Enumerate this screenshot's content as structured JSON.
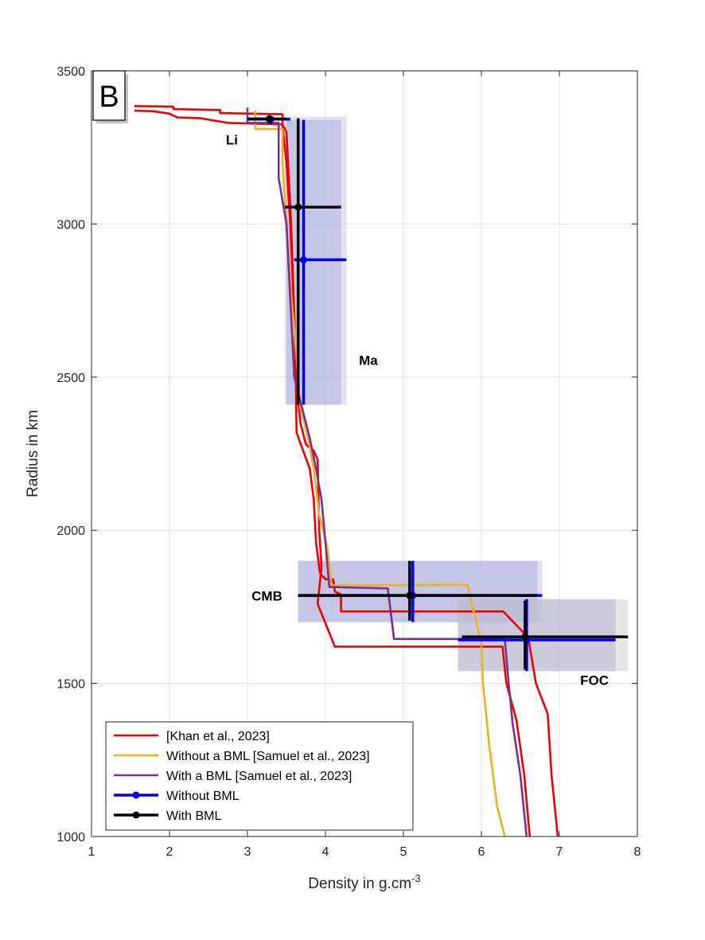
{
  "chart_data": {
    "type": "line",
    "panel_label": "B",
    "xlabel": "Density in g.cm",
    "xlabel_superscript": "-3",
    "ylabel": "Radius in km",
    "xlim": [
      1,
      8
    ],
    "ylim": [
      1000,
      3500
    ],
    "xticks": [
      1,
      2,
      3,
      4,
      5,
      6,
      7,
      8
    ],
    "yticks": [
      1000,
      1500,
      2000,
      2500,
      3000,
      3500
    ],
    "grid": true,
    "legend_position": "bottom-left",
    "colors": {
      "khan": "#ee0000",
      "without_bml_samuel": "#eeb020",
      "with_bml_samuel": "#7d2e8e",
      "without_bml": "#0000ee",
      "with_bml": "#000000",
      "band": "#8c8ccd",
      "band_outer": "#c8c8e6",
      "band_gray": "#d2d2d2"
    },
    "region_labels": [
      {
        "text": "Li",
        "x": 2.8,
        "y": 3260
      },
      {
        "text": "Ma",
        "x": 4.55,
        "y": 2540
      },
      {
        "text": "CMB",
        "x": 3.25,
        "y": 1770
      },
      {
        "text": "FOC",
        "x": 7.45,
        "y": 1495
      }
    ],
    "uncertainty_bands": [
      {
        "x0": 3.5,
        "x1": 4.2,
        "y0": 2410,
        "y1": 3340,
        "fill": "band"
      },
      {
        "x0": 3.48,
        "x1": 4.27,
        "y0": 2410,
        "y1": 3350,
        "fill": "band_outer"
      },
      {
        "x0": 3.65,
        "x1": 6.72,
        "y0": 1700,
        "y1": 1900,
        "fill": "band"
      },
      {
        "x0": 3.65,
        "x1": 6.78,
        "y0": 1700,
        "y1": 1900,
        "fill": "band_outer"
      },
      {
        "x0": 5.7,
        "x1": 7.72,
        "y0": 1540,
        "y1": 1775,
        "fill": "band"
      },
      {
        "x0": 5.7,
        "x1": 7.88,
        "y0": 1540,
        "y1": 1775,
        "fill": "band_gray"
      }
    ],
    "series": [
      {
        "name": "[Khan et al., 2023]",
        "color": "khan",
        "kind": "line",
        "points": [
          [
            1.55,
            3385
          ],
          [
            2.05,
            3383
          ],
          [
            2.05,
            3375
          ],
          [
            2.65,
            3372
          ],
          [
            2.65,
            3362
          ],
          [
            3.45,
            3358
          ],
          [
            3.45,
            3320
          ],
          [
            3.5,
            3200
          ],
          [
            3.55,
            3000
          ],
          [
            3.6,
            2700
          ],
          [
            3.62,
            2500
          ],
          [
            3.63,
            2320
          ],
          [
            3.7,
            2270
          ],
          [
            3.8,
            2200
          ],
          [
            3.85,
            2100
          ],
          [
            3.88,
            1960
          ],
          [
            3.93,
            1860
          ],
          [
            4.0,
            1840
          ],
          [
            4.1,
            1840
          ],
          [
            4.12,
            1800
          ],
          [
            4.2,
            1790
          ],
          [
            4.2,
            1735
          ],
          [
            6.28,
            1735
          ],
          [
            6.6,
            1650
          ],
          [
            6.7,
            1500
          ],
          [
            6.85,
            1400
          ],
          [
            6.9,
            1200
          ],
          [
            6.98,
            1000
          ]
        ]
      },
      {
        "name": "[Khan et al., 2023]",
        "color": "khan",
        "kind": "line",
        "points": [
          [
            1.55,
            3370
          ],
          [
            1.8,
            3368
          ],
          [
            2.0,
            3360
          ],
          [
            2.1,
            3348
          ],
          [
            2.4,
            3345
          ],
          [
            2.75,
            3330
          ],
          [
            3.05,
            3328
          ],
          [
            3.45,
            3325
          ],
          [
            3.5,
            3300
          ],
          [
            3.52,
            3200
          ],
          [
            3.56,
            3000
          ],
          [
            3.6,
            2700
          ],
          [
            3.62,
            2500
          ],
          [
            3.68,
            2350
          ],
          [
            3.75,
            2280
          ],
          [
            3.85,
            2260
          ],
          [
            3.9,
            2230
          ],
          [
            3.92,
            2000
          ],
          [
            3.95,
            1880
          ],
          [
            3.9,
            1760
          ],
          [
            4.12,
            1620
          ],
          [
            6.27,
            1620
          ],
          [
            6.32,
            1500
          ],
          [
            6.45,
            1380
          ],
          [
            6.55,
            1200
          ],
          [
            6.62,
            1000
          ]
        ]
      },
      {
        "name": "Without a BML [Samuel et al., 2023]",
        "color": "without_bml_samuel",
        "kind": "line",
        "points": [
          [
            3.1,
            3370
          ],
          [
            3.1,
            3310
          ],
          [
            3.45,
            3310
          ],
          [
            3.45,
            3200
          ],
          [
            3.5,
            3000
          ],
          [
            3.55,
            2800
          ],
          [
            3.62,
            2600
          ],
          [
            3.68,
            2400
          ],
          [
            3.78,
            2300
          ],
          [
            3.85,
            2200
          ],
          [
            3.92,
            2050
          ],
          [
            4.02,
            1950
          ],
          [
            4.08,
            1820
          ],
          [
            5.82,
            1822
          ],
          [
            6.0,
            1630
          ],
          [
            6.02,
            1500
          ],
          [
            6.1,
            1300
          ],
          [
            6.2,
            1100
          ],
          [
            6.3,
            1000
          ]
        ]
      },
      {
        "name": "With a BML [Samuel et al., 2023]",
        "color": "with_bml_samuel",
        "kind": "line",
        "points": [
          [
            3.0,
            3380
          ],
          [
            3.0,
            3330
          ],
          [
            3.4,
            3330
          ],
          [
            3.4,
            3150
          ],
          [
            3.5,
            3000
          ],
          [
            3.6,
            2500
          ],
          [
            3.7,
            2400
          ],
          [
            3.8,
            2300
          ],
          [
            3.88,
            2200
          ],
          [
            3.95,
            2100
          ],
          [
            4.0,
            1960
          ],
          [
            4.05,
            1815
          ],
          [
            4.8,
            1810
          ],
          [
            4.88,
            1645
          ],
          [
            6.3,
            1645
          ],
          [
            6.35,
            1500
          ],
          [
            6.4,
            1370
          ],
          [
            6.5,
            1200
          ],
          [
            6.58,
            1000
          ]
        ]
      },
      {
        "name": "Without BML",
        "color": "without_bml",
        "kind": "point",
        "points": [
          [
            3.3,
            3342
          ],
          [
            3.72,
            2883
          ],
          [
            5.12,
            1787
          ],
          [
            6.58,
            1642
          ]
        ],
        "xerr": [
          [
            3.0,
            3.55
          ],
          [
            3.6,
            4.27
          ],
          [
            3.65,
            6.78
          ],
          [
            5.7,
            7.72
          ]
        ],
        "yerr": [
          [
            3325,
            3350
          ],
          [
            2410,
            3340
          ],
          [
            1700,
            1900
          ],
          [
            1540,
            1775
          ]
        ]
      },
      {
        "name": "With BML",
        "color": "with_bml",
        "kind": "point",
        "points": [
          [
            3.28,
            3343
          ],
          [
            3.65,
            3055
          ],
          [
            5.08,
            1787
          ],
          [
            6.56,
            1652
          ]
        ],
        "xerr": [
          [
            3.0,
            3.5
          ],
          [
            3.48,
            4.2
          ],
          [
            3.65,
            6.72
          ],
          [
            5.75,
            7.88
          ]
        ],
        "yerr": [
          [
            3330,
            3355
          ],
          [
            2410,
            3345
          ],
          [
            1705,
            1900
          ],
          [
            1545,
            1770
          ]
        ]
      }
    ]
  }
}
